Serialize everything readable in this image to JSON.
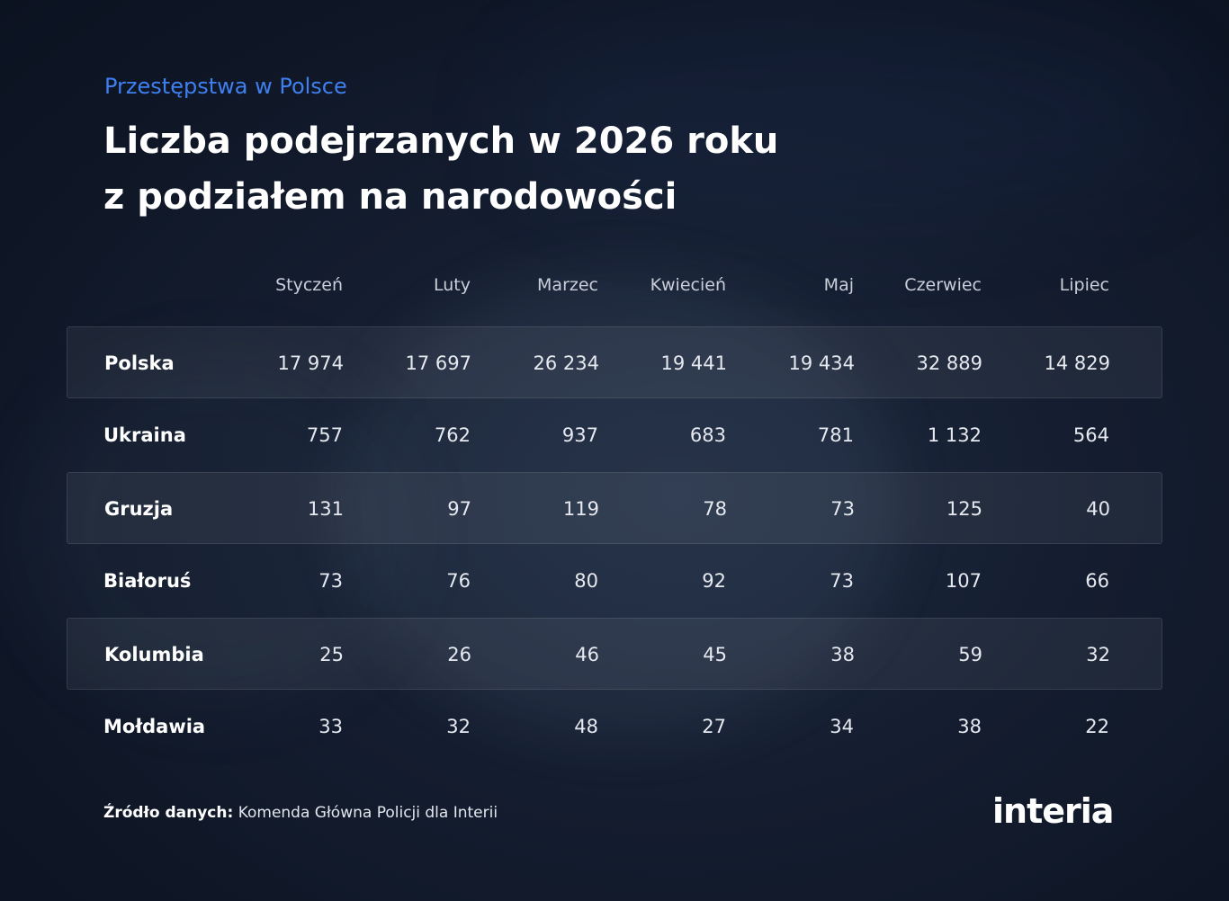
{
  "header": {
    "subtitle": "Przestępstwa w Polsce",
    "title_line1": "Liczba podejrzanych w 2026 roku",
    "title_line2": "z podziałem na narodowości"
  },
  "chart_data": {
    "type": "table",
    "title": "Liczba podejrzanych w 2026 roku z podziałem na narodowości",
    "subtitle": "Przestępstwa w Polsce",
    "columns": [
      "Styczeń",
      "Luty",
      "Marzec",
      "Kwiecień",
      "Maj",
      "Czerwiec",
      "Lipiec"
    ],
    "rows": [
      {
        "label": "Polska",
        "display": [
          "17 974",
          "17 697",
          "26 234",
          "19 441",
          "19 434",
          "32 889",
          "14 829"
        ],
        "values": [
          17974,
          17697,
          26234,
          19441,
          19434,
          32889,
          14829
        ]
      },
      {
        "label": "Ukraina",
        "display": [
          "757",
          "762",
          "937",
          "683",
          "781",
          "1 132",
          "564"
        ],
        "values": [
          757,
          762,
          937,
          683,
          781,
          1132,
          564
        ]
      },
      {
        "label": "Gruzja",
        "display": [
          "131",
          "97",
          "119",
          "78",
          "73",
          "125",
          "40"
        ],
        "values": [
          131,
          97,
          119,
          78,
          73,
          125,
          40
        ]
      },
      {
        "label": "Białoruś",
        "display": [
          "73",
          "76",
          "80",
          "92",
          "73",
          "107",
          "66"
        ],
        "values": [
          73,
          76,
          80,
          92,
          73,
          107,
          66
        ]
      },
      {
        "label": "Kolumbia",
        "display": [
          "25",
          "26",
          "46",
          "45",
          "38",
          "59",
          "32"
        ],
        "values": [
          25,
          26,
          46,
          45,
          38,
          59,
          32
        ]
      },
      {
        "label": "Mołdawia",
        "display": [
          "33",
          "32",
          "48",
          "27",
          "34",
          "38",
          "22"
        ],
        "values": [
          33,
          32,
          48,
          27,
          34,
          38,
          22
        ]
      }
    ]
  },
  "footer": {
    "source_label": "Źródło danych:",
    "source_text": "Komenda Główna Policji dla Interii",
    "logo_text": "interia"
  },
  "colors": {
    "accent": "#3f7ff0",
    "background": "#141d2f"
  }
}
